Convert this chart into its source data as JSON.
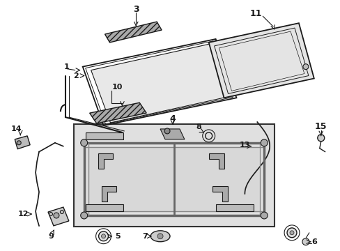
{
  "bg_color": "#ffffff",
  "fig_width": 4.89,
  "fig_height": 3.6,
  "dpi": 100,
  "lc": "#1a1a1a",
  "pc": "#444444",
  "box_fill": "#e0e0e0",
  "box_edge": "#333333",
  "gray_light": "#cccccc",
  "gray_mid": "#999999",
  "hatch_color": "#555555"
}
